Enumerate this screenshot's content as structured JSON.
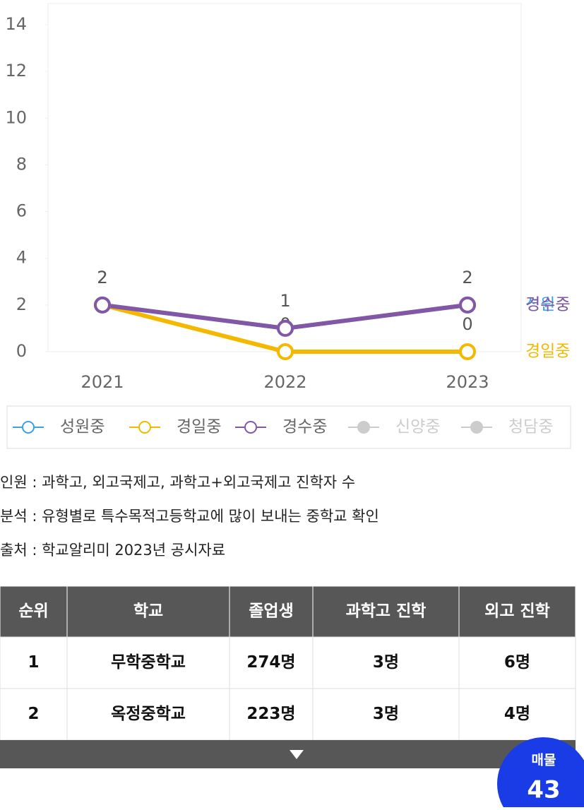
{
  "chart_data": {
    "type": "line",
    "categories": [
      "2021",
      "2022",
      "2023"
    ],
    "ylim": [
      0,
      14
    ],
    "yticks": [
      0,
      2,
      4,
      6,
      8,
      10,
      12,
      14
    ],
    "series": [
      {
        "name": "성원중",
        "color": "#3aa3e3",
        "values": [
          2,
          1,
          2
        ]
      },
      {
        "name": "경일중",
        "color": "#f5b800",
        "values": [
          2,
          0,
          0
        ],
        "show_labels": true
      },
      {
        "name": "경수중",
        "color": "#8457a6",
        "values": [
          2,
          1,
          2
        ],
        "show_labels": true
      },
      {
        "name": "신양중",
        "color": "#cccccc",
        "values": [
          null,
          null,
          null
        ],
        "hidden": true
      },
      {
        "name": "청담중",
        "color": "#cccccc",
        "values": [
          null,
          null,
          null
        ],
        "hidden": true
      }
    ]
  },
  "notes": [
    "인원 : 과학고, 외고국제고, 과학고+외고국제고 진학자 수",
    "분석 : 유형별로 특수목적고등학교에 많이 보내는 중학교 확인",
    "출처 : 학교알리미 2023년 공시자료"
  ],
  "table": {
    "header": [
      "순위",
      "학교",
      "졸업생",
      "과학고 진학",
      "외고 진학"
    ],
    "rows": [
      [
        "1",
        "무학중학교",
        "274명",
        "3명",
        "6명"
      ],
      [
        "2",
        "옥정중학교",
        "223명",
        "3명",
        "4명"
      ]
    ]
  },
  "badge": {
    "label": "매물",
    "count": "43"
  }
}
